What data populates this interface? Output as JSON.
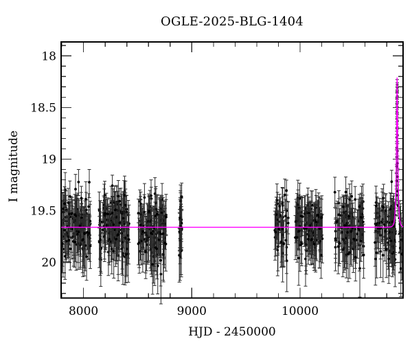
{
  "title": "OGLE-2025-BLG-1404",
  "axes": {
    "xlabel": "HJD - 2450000",
    "ylabel": "I magnitude",
    "x_tick_labels": [
      "8000",
      "9000",
      "10000"
    ],
    "y_tick_labels": [
      "18",
      "18.5",
      "19",
      "19.5",
      "20"
    ]
  },
  "colors": {
    "background": "#ffffff",
    "frame": "#000000",
    "ticks": "#333333",
    "data_points": "#000000",
    "error_bars": "#2b2b2b",
    "model_curve": "#ff00ff"
  },
  "chart_data": {
    "type": "scatter",
    "title": "OGLE-2025-BLG-1404",
    "xlabel": "HJD - 2450000",
    "ylabel": "I magnitude",
    "x_range": [
      7793,
      10951
    ],
    "y_range": [
      20.345,
      17.865
    ],
    "y_axis_inverted": true,
    "grid": false,
    "legend": false,
    "x_major_ticks": [
      8000,
      9000,
      10000
    ],
    "x_minor_step": 200,
    "y_major_ticks": [
      18,
      18.5,
      19,
      19.5,
      20
    ],
    "y_minor_step": 0.1,
    "baseline_mag": 19.66,
    "model": {
      "type": "paczynski-microlensing",
      "t0": 10896,
      "tE": 13,
      "u0": 0.27,
      "baseline_mag": 19.66,
      "peak_mag": 18.21
    },
    "seed": 1404,
    "scatter_sigma": 0.155,
    "mag_clamp": [
      19.18,
      20.26
    ],
    "error_model": {
      "base": 0.1,
      "faint_slope": 0.22,
      "faint_ref_mag": 19.4,
      "jitter": 0.07
    },
    "seasons": [
      {
        "t_start": 7795,
        "t_end": 8065,
        "n_points": 112,
        "mean_mag": 19.66,
        "sigma_mag": 0.155
      },
      {
        "t_start": 8141,
        "t_end": 8421,
        "n_points": 132,
        "mean_mag": 19.66,
        "sigma_mag": 0.155
      },
      {
        "t_start": 8497,
        "t_end": 8763,
        "n_points": 118,
        "mean_mag": 19.66,
        "sigma_mag": 0.155
      },
      {
        "t_start": 8883,
        "t_end": 8909,
        "n_points": 22,
        "mean_mag": 19.66,
        "sigma_mag": 0.15
      },
      {
        "t_start": 9766,
        "t_end": 9891,
        "n_points": 42,
        "mean_mag": 19.66,
        "sigma_mag": 0.16
      },
      {
        "t_start": 9956,
        "t_end": 10209,
        "n_points": 106,
        "mean_mag": 19.67,
        "sigma_mag": 0.16
      },
      {
        "t_start": 10317,
        "t_end": 10590,
        "n_points": 96,
        "mean_mag": 19.67,
        "sigma_mag": 0.16
      },
      {
        "t_start": 10692,
        "t_end": 10881,
        "n_points": 82,
        "mean_mag": 19.66,
        "sigma_mag": 0.16
      }
    ],
    "event_points": [
      [
        10889.0,
        19.35,
        0.09
      ],
      [
        10890.0,
        19.21,
        0.08
      ],
      [
        10890.7,
        19.07,
        0.07
      ],
      [
        10891.3,
        18.98,
        0.07
      ],
      [
        10892.0,
        18.89,
        0.06
      ],
      [
        10892.6,
        18.79,
        0.06
      ],
      [
        10893.2,
        18.7,
        0.06
      ],
      [
        10893.8,
        18.61,
        0.05
      ],
      [
        10894.3,
        18.54,
        0.05
      ],
      [
        10894.9,
        18.47,
        0.05
      ],
      [
        10895.4,
        18.41,
        0.05
      ],
      [
        10895.8,
        18.35,
        0.05
      ],
      [
        10896.2,
        18.28,
        0.05
      ],
      [
        10896.8,
        18.31,
        0.05
      ],
      [
        10897.4,
        18.39,
        0.05
      ],
      [
        10898.0,
        18.5,
        0.05
      ],
      [
        10898.6,
        18.63,
        0.06
      ],
      [
        10899.2,
        18.77,
        0.06
      ],
      [
        10899.8,
        18.92,
        0.07
      ],
      [
        10900.5,
        19.04,
        0.07
      ],
      [
        10901.3,
        19.17,
        0.08
      ],
      [
        10902.2,
        19.31,
        0.09
      ],
      [
        10903.5,
        19.45,
        0.1
      ],
      [
        10916,
        19.57,
        0.16
      ],
      [
        10919,
        19.72,
        0.19
      ],
      [
        10922,
        19.63,
        0.17
      ],
      [
        10925,
        19.86,
        0.23
      ],
      [
        10928,
        19.59,
        0.16
      ],
      [
        10931,
        20.06,
        0.27
      ],
      [
        10934,
        19.7,
        0.18
      ],
      [
        10937,
        19.78,
        0.21
      ],
      [
        10940,
        19.92,
        0.25
      ]
    ]
  }
}
